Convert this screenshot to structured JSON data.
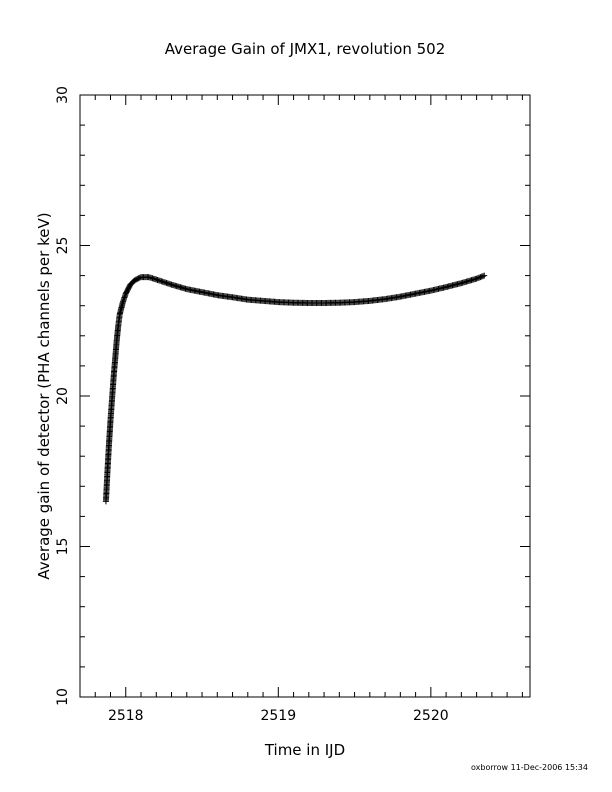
{
  "chart_data": {
    "type": "scatter",
    "title": "Average Gain of JMX1, revolution 502",
    "xlabel": "Time in IJD",
    "ylabel": "Average gain of detector (PHA channels per keV)",
    "xlim": [
      2517.7,
      2520.65
    ],
    "ylim": [
      10,
      30
    ],
    "x_ticks": [
      "2518",
      "2519",
      "2520"
    ],
    "y_ticks": [
      "10",
      "15",
      "20",
      "25",
      "30"
    ],
    "x_tick_values": [
      2518,
      2519,
      2520
    ],
    "y_tick_values": [
      10,
      15,
      20,
      25,
      30
    ],
    "grid": false,
    "marker": "plus",
    "series": [
      {
        "x": [
          2517.87,
          2517.88,
          2517.89,
          2517.9,
          2517.91,
          2517.92,
          2517.93,
          2517.94,
          2517.95,
          2517.96,
          2517.98,
          2518.0,
          2518.03,
          2518.06,
          2518.1,
          2518.15,
          2518.2,
          2518.3,
          2518.4,
          2518.5,
          2518.6,
          2518.7,
          2518.8,
          2518.9,
          2519.0,
          2519.1,
          2519.2,
          2519.3,
          2519.4,
          2519.5,
          2519.6,
          2519.7,
          2519.8,
          2519.9,
          2520.0,
          2520.1,
          2520.2,
          2520.3,
          2520.35
        ],
        "y": [
          16.5,
          17.5,
          18.4,
          19.2,
          19.9,
          20.6,
          21.2,
          21.8,
          22.3,
          22.7,
          23.1,
          23.4,
          23.7,
          23.85,
          23.95,
          23.95,
          23.87,
          23.7,
          23.55,
          23.45,
          23.35,
          23.28,
          23.2,
          23.16,
          23.12,
          23.1,
          23.09,
          23.09,
          23.1,
          23.12,
          23.16,
          23.22,
          23.3,
          23.4,
          23.5,
          23.62,
          23.75,
          23.9,
          24.0
        ]
      }
    ]
  },
  "footer": {
    "stamp": "oxborrow 11-Dec-2006 15:34"
  }
}
